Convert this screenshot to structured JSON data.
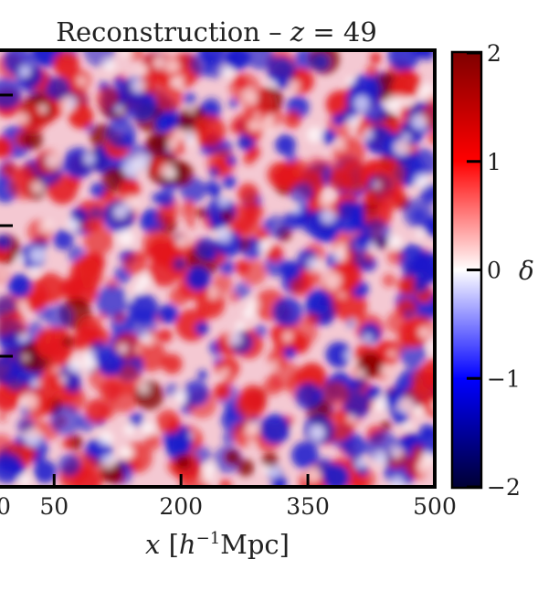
{
  "chart_data": {
    "type": "heatmap",
    "title": "Reconstruction – z = 49",
    "title_parts": {
      "prefix": "Reconstruction – ",
      "variable": "z",
      "suffix": " = 49"
    },
    "xlabel_parts": {
      "variable": "x",
      "bracket_open": " [",
      "h": "h",
      "exponent": "−1",
      "unit": "Mpc]"
    },
    "x_tick_labels": [
      "50",
      "200",
      "350",
      "500"
    ],
    "x_ticks": [
      50,
      200,
      350,
      500
    ],
    "x_visible_range": [
      -14,
      500
    ],
    "y_ticks_count": 3,
    "colorbar": {
      "label": "δ",
      "range": [
        -2,
        2
      ],
      "ticks": [
        2,
        1,
        0,
        -1,
        -2
      ],
      "tick_labels": [
        "2",
        "1",
        "0",
        "−1",
        "−2"
      ],
      "colormap": "seismic",
      "colors": [
        "#000033",
        "#0000ff",
        "#ffffff",
        "#ff0000",
        "#7f0000"
      ]
    },
    "field": {
      "description_type": "gaussian random density field",
      "dominant_colors": [
        "#1a1acc",
        "#e31a1c",
        "#ffffff"
      ]
    },
    "grid": false
  }
}
